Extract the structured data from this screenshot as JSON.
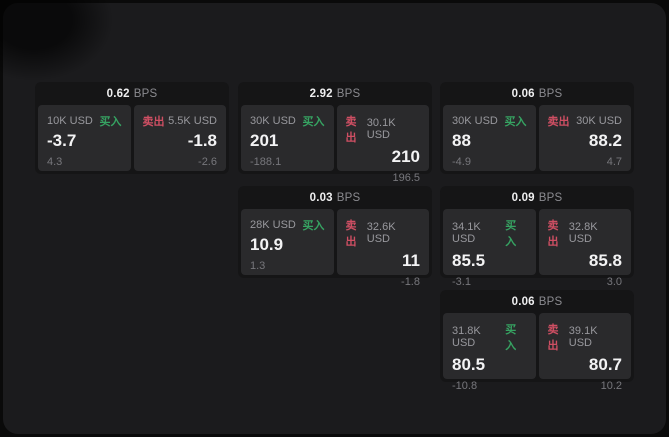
{
  "page": {
    "bps_unit": "BPS",
    "buy_label": "买入",
    "sell_label": "卖出"
  },
  "colors": {
    "background_outer": "#0a0a0a",
    "surface": "#1b1b1d",
    "card": "#151516",
    "panel": "#2a2a2c",
    "buy_green": "#36a362",
    "sell_red": "#cf4f63",
    "value_white": "#f3f3f4",
    "label_gray": "#98989d",
    "sub_gray": "#77777c"
  },
  "cards": [
    {
      "bps": "0.62",
      "buy": {
        "amount": "10K USD",
        "value": "-3.7",
        "sub": "4.3"
      },
      "sell": {
        "amount": "5.5K USD",
        "value": "-1.8",
        "sub": "-2.6"
      }
    },
    {
      "bps": "2.92",
      "buy": {
        "amount": "30K USD",
        "value": "201",
        "sub": "-188.1"
      },
      "sell": {
        "amount": "30.1K USD",
        "value": "210",
        "sub": "196.5"
      }
    },
    {
      "bps": "0.06",
      "buy": {
        "amount": "30K USD",
        "value": "88",
        "sub": "-4.9"
      },
      "sell": {
        "amount": "30K USD",
        "value": "88.2",
        "sub": "4.7"
      }
    },
    {
      "bps": "0.03",
      "buy": {
        "amount": "28K USD",
        "value": "10.9",
        "sub": "1.3"
      },
      "sell": {
        "amount": "32.6K USD",
        "value": "11",
        "sub": "-1.8"
      }
    },
    {
      "bps": "0.09",
      "buy": {
        "amount": "34.1K USD",
        "value": "85.5",
        "sub": "-3.1"
      },
      "sell": {
        "amount": "32.8K USD",
        "value": "85.8",
        "sub": "3.0"
      }
    },
    {
      "bps": "0.06",
      "buy": {
        "amount": "31.8K USD",
        "value": "80.5",
        "sub": "-10.8"
      },
      "sell": {
        "amount": "39.1K USD",
        "value": "80.7",
        "sub": "10.2"
      }
    }
  ]
}
